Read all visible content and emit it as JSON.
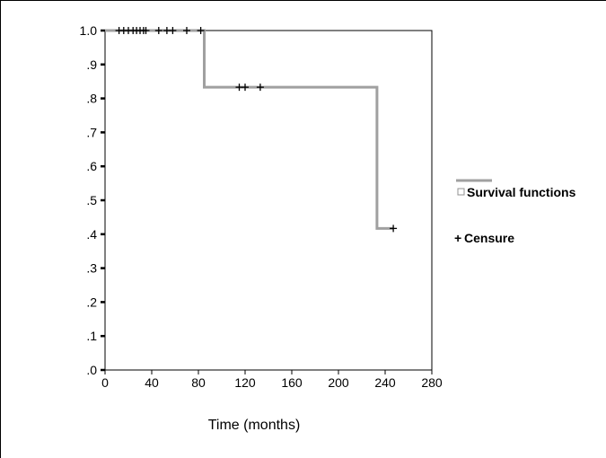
{
  "chart_data": {
    "type": "line",
    "title": "",
    "xlabel": "Time (months)",
    "ylabel": "",
    "xlim": [
      0,
      280
    ],
    "ylim": [
      0,
      1.0
    ],
    "x_ticks": [
      0,
      40,
      80,
      120,
      160,
      200,
      240,
      280
    ],
    "x_tick_labels": [
      "0",
      "40",
      "80",
      "120",
      "160",
      "200",
      "240",
      "280"
    ],
    "y_ticks": [
      0,
      0.1,
      0.2,
      0.3,
      0.4,
      0.5,
      0.6,
      0.7,
      0.8,
      0.9,
      1.0
    ],
    "y_tick_labels": [
      ".0",
      ".1",
      ".2",
      ".3",
      ".4",
      ".5",
      ".6",
      ".7",
      ".8",
      ".9",
      "1.0"
    ],
    "grid": false,
    "legend_position": "right",
    "series": [
      {
        "name": "Survival functions",
        "kind": "step",
        "color": "#a0a0a0",
        "x": [
          0,
          85,
          85,
          233,
          233,
          247
        ],
        "y": [
          1.0,
          1.0,
          0.833,
          0.833,
          0.417,
          0.417
        ]
      },
      {
        "name": "Censure",
        "kind": "marker",
        "marker": "+",
        "color": "#000000",
        "x": [
          12,
          16,
          20,
          24,
          27,
          30,
          33,
          35,
          46,
          53,
          58,
          70,
          82,
          115,
          120,
          133,
          247
        ],
        "y": [
          1.0,
          1.0,
          1.0,
          1.0,
          1.0,
          1.0,
          1.0,
          1.0,
          1.0,
          1.0,
          1.0,
          1.0,
          1.0,
          0.833,
          0.833,
          0.833,
          0.417
        ]
      }
    ]
  },
  "legend": {
    "survival_label": "Survival functions",
    "censure_label": "Censure",
    "censure_symbol": "+"
  }
}
